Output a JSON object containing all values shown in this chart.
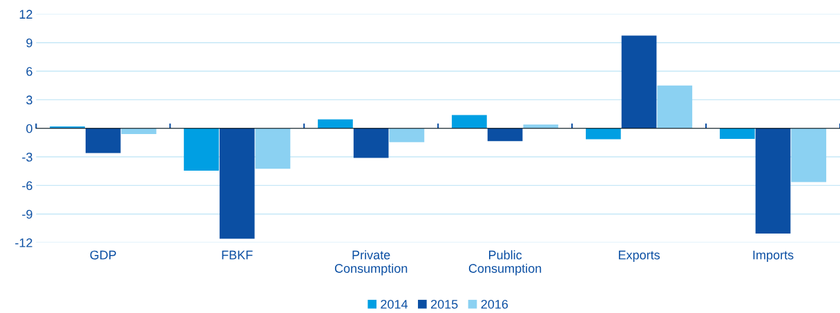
{
  "chart_data": {
    "type": "bar",
    "categories": [
      "GDP",
      "FBKF",
      "Private\nConsumption",
      "Public\nConsumption",
      "Exports",
      "Imports"
    ],
    "series": [
      {
        "name": "2014",
        "color": "#009fe3",
        "values": [
          0.2,
          -4.45,
          0.95,
          1.4,
          -1.15,
          -1.1
        ]
      },
      {
        "name": "2015",
        "color": "#0b4fa3",
        "values": [
          -2.6,
          -11.6,
          -3.1,
          -1.35,
          9.75,
          -11.05
        ]
      },
      {
        "name": "2016",
        "color": "#8bd1f2",
        "values": [
          -0.6,
          -4.25,
          -1.45,
          0.4,
          4.5,
          -5.65
        ]
      }
    ],
    "ylim": [
      -12,
      12
    ],
    "yticks": [
      -12,
      -9,
      -6,
      -3,
      0,
      3,
      6,
      9,
      12
    ],
    "grid": "y",
    "legend": "bottom"
  }
}
